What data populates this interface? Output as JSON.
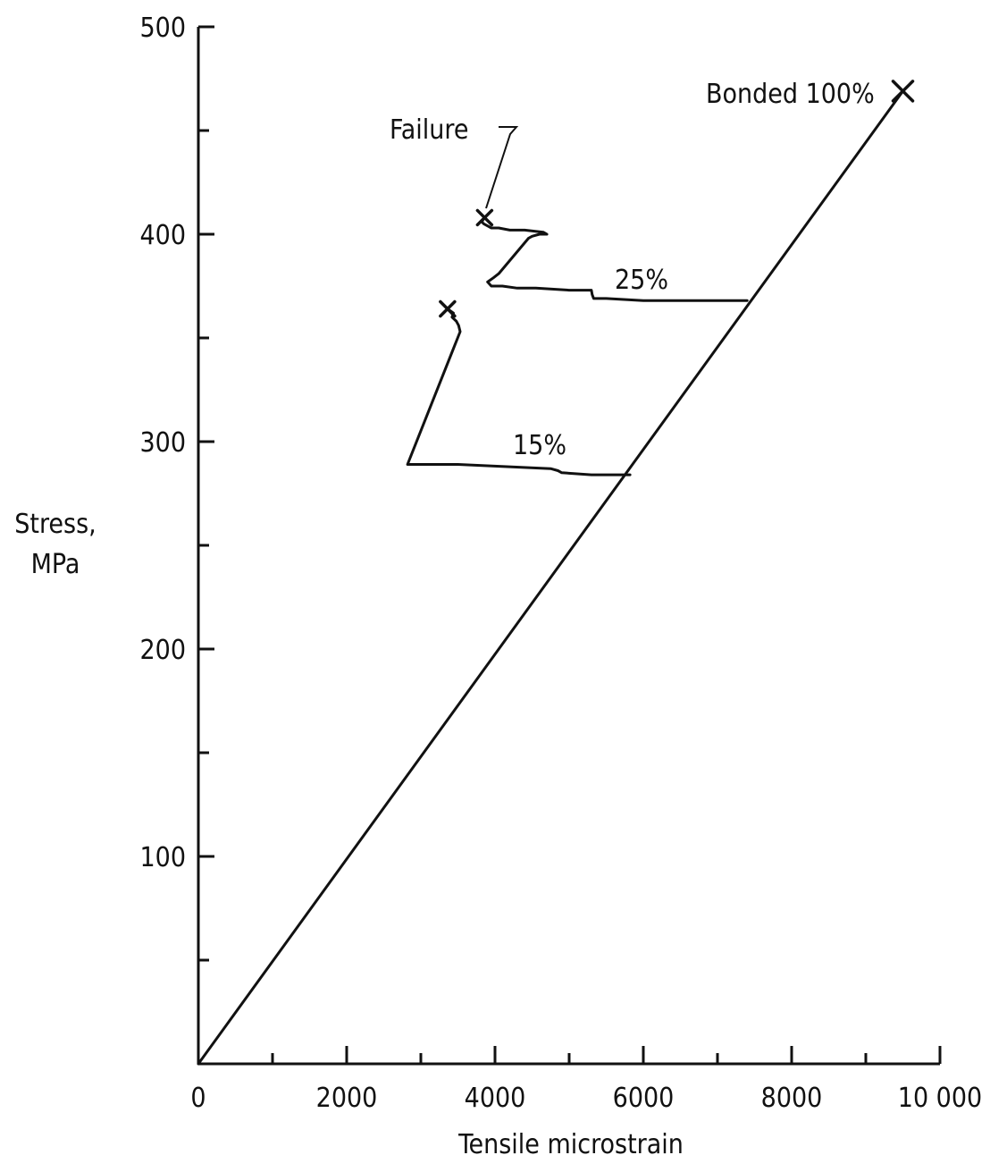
{
  "chart_data": {
    "type": "line",
    "title": "",
    "xlabel": "Tensile microstrain",
    "ylabel_lines": [
      "Stress,",
      "MPa"
    ],
    "xlim": [
      0,
      10000
    ],
    "ylim": [
      0,
      500
    ],
    "x_ticks": [
      0,
      2000,
      4000,
      6000,
      8000,
      10000
    ],
    "x_tick_labels": [
      "0",
      "2000",
      "4000",
      "6000",
      "8000",
      "10 000"
    ],
    "x_minor_ticks": [
      1000,
      3000,
      5000,
      7000,
      9000
    ],
    "y_ticks": [
      100,
      200,
      300,
      400,
      500
    ],
    "y_tick_labels": [
      "100",
      "200",
      "300",
      "400",
      "500"
    ],
    "y_minor_ticks": [
      50,
      150,
      250,
      350,
      450
    ],
    "grid": false,
    "series": [
      {
        "name": "Bonded 100%",
        "points": [
          [
            0,
            0
          ],
          [
            9500,
            469
          ]
        ],
        "failure_point": [
          9500,
          469
        ]
      },
      {
        "name": "25%",
        "points": [
          [
            7400,
            368
          ],
          [
            7000,
            368
          ],
          [
            6000,
            368
          ],
          [
            5500,
            369
          ],
          [
            5330,
            369
          ],
          [
            5310,
            371
          ],
          [
            5300,
            373
          ],
          [
            5000,
            373
          ],
          [
            4550,
            374
          ],
          [
            4300,
            374
          ],
          [
            4100,
            375
          ],
          [
            3950,
            375
          ],
          [
            3900,
            377
          ],
          [
            3980,
            379
          ],
          [
            4050,
            381
          ],
          [
            4450,
            398
          ],
          [
            4500,
            399
          ],
          [
            4600,
            400
          ],
          [
            4700,
            400
          ],
          [
            4650,
            401
          ],
          [
            4400,
            402
          ],
          [
            4200,
            402
          ],
          [
            4050,
            403
          ],
          [
            3950,
            403
          ],
          [
            3850,
            405
          ],
          [
            3820,
            406
          ],
          [
            3860,
            408
          ]
        ],
        "failure_point": [
          3860,
          408
        ]
      },
      {
        "name": "15%",
        "points": [
          [
            5820,
            284
          ],
          [
            5300,
            284
          ],
          [
            4900,
            285
          ],
          [
            4850,
            286
          ],
          [
            4750,
            287
          ],
          [
            3500,
            289
          ],
          [
            2820,
            289
          ],
          [
            3530,
            353
          ],
          [
            3510,
            356
          ],
          [
            3480,
            358
          ],
          [
            3420,
            360
          ],
          [
            3440,
            362
          ],
          [
            3360,
            364
          ]
        ],
        "failure_point": [
          3360,
          364
        ]
      }
    ],
    "annotations": [
      {
        "text": "Bonded 100%",
        "series": "Bonded 100%"
      },
      {
        "text": "25%",
        "series": "25%"
      },
      {
        "text": "15%",
        "series": "15%"
      },
      {
        "text": "Failure",
        "target": [
          3860,
          408
        ]
      }
    ]
  }
}
